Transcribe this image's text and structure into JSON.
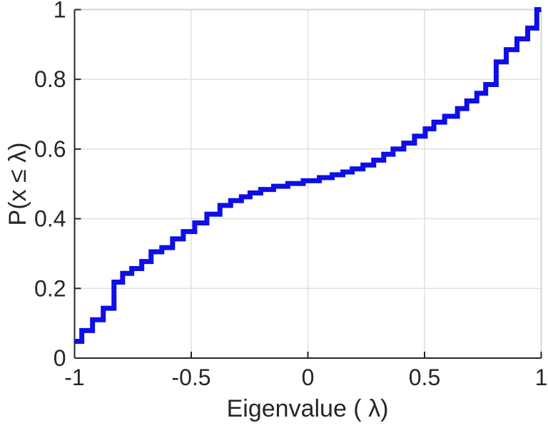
{
  "figure": {
    "background": "#ffffff",
    "description": "Empirical cumulative distribution function of eigenvalues, MATLAB-style stairs plot"
  },
  "chart_data": {
    "type": "step",
    "title": "",
    "xlabel": "Eigenvalue (  λ)",
    "ylabel": "P(x ≤ λ)",
    "xlim": [
      -1,
      1
    ],
    "ylim": [
      0,
      1
    ],
    "grid": true,
    "legend": "none",
    "x_ticks": [
      -1,
      -0.5,
      0,
      0.5,
      1
    ],
    "x_tick_labels": [
      "-1",
      "-0.5",
      "0",
      "0.5",
      "1"
    ],
    "y_ticks": [
      0,
      0.2,
      0.4,
      0.6,
      0.8,
      1
    ],
    "y_tick_labels": [
      "0",
      "0.2",
      "0.4",
      "0.6",
      "0.8",
      "1"
    ],
    "line_color": "#0e0ee8",
    "axis_color": "#262626",
    "grid_color": "#e3e3e3",
    "frame_color": "#d6d6d6",
    "tick_label_color": "#262626",
    "series": [
      {
        "name": "empirical-cdf",
        "x": [
          -1.0,
          -0.969,
          -0.923,
          -0.877,
          -0.831,
          -0.794,
          -0.755,
          -0.712,
          -0.672,
          -0.626,
          -0.58,
          -0.534,
          -0.485,
          -0.433,
          -0.377,
          -0.331,
          -0.285,
          -0.248,
          -0.202,
          -0.147,
          -0.086,
          -0.02,
          0.049,
          0.104,
          0.15,
          0.19,
          0.236,
          0.282,
          0.325,
          0.365,
          0.411,
          0.457,
          0.503,
          0.54,
          0.586,
          0.641,
          0.681,
          0.724,
          0.762,
          0.807,
          0.85,
          0.896,
          0.942,
          0.981
        ],
        "cdf": [
          0.048,
          0.079,
          0.11,
          0.143,
          0.218,
          0.243,
          0.257,
          0.277,
          0.305,
          0.317,
          0.342,
          0.363,
          0.388,
          0.413,
          0.438,
          0.452,
          0.463,
          0.474,
          0.484,
          0.493,
          0.501,
          0.509,
          0.518,
          0.526,
          0.534,
          0.543,
          0.554,
          0.568,
          0.585,
          0.6,
          0.617,
          0.637,
          0.658,
          0.677,
          0.694,
          0.716,
          0.738,
          0.76,
          0.785,
          0.85,
          0.885,
          0.916,
          0.947,
          1.0
        ]
      }
    ]
  }
}
